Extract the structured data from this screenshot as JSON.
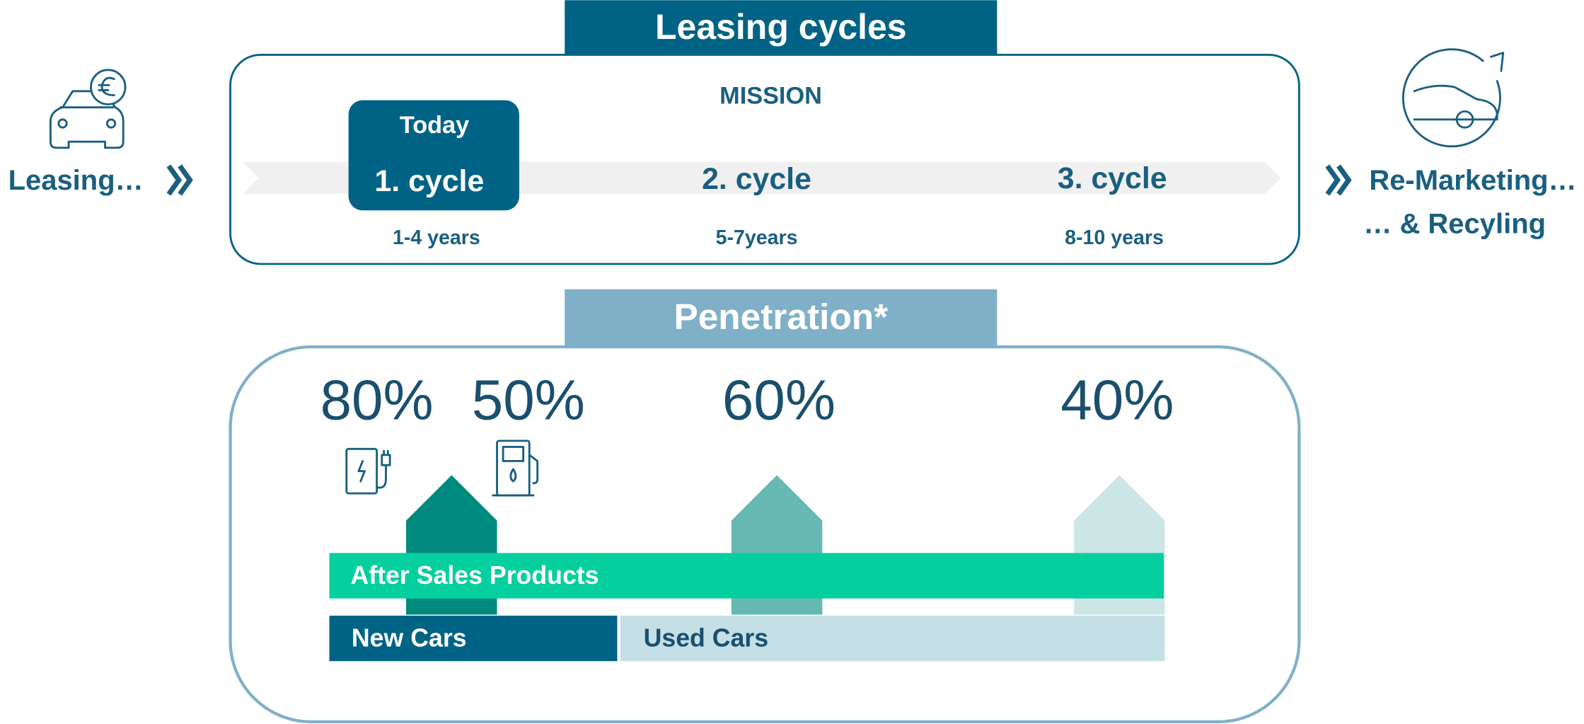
{
  "left_label": "Leasing…",
  "right_labels": [
    "Re-Marketing…",
    "… & Recyling"
  ],
  "leasing_cycles": {
    "title": "Leasing cycles",
    "mission": "MISSION",
    "today": "Today",
    "cycles": [
      {
        "label": "1. cycle",
        "duration": "1-4 years"
      },
      {
        "label": "2. cycle",
        "duration": "5-7years"
      },
      {
        "label": "3. cycle",
        "duration": "8-10 years"
      }
    ]
  },
  "penetration": {
    "title": "Penetration*",
    "values": [
      "80%",
      "50%",
      "60%",
      "40%"
    ],
    "after_sales": "After Sales Products",
    "new_cars": "New Cars",
    "used_cars": "Used Cars"
  }
}
